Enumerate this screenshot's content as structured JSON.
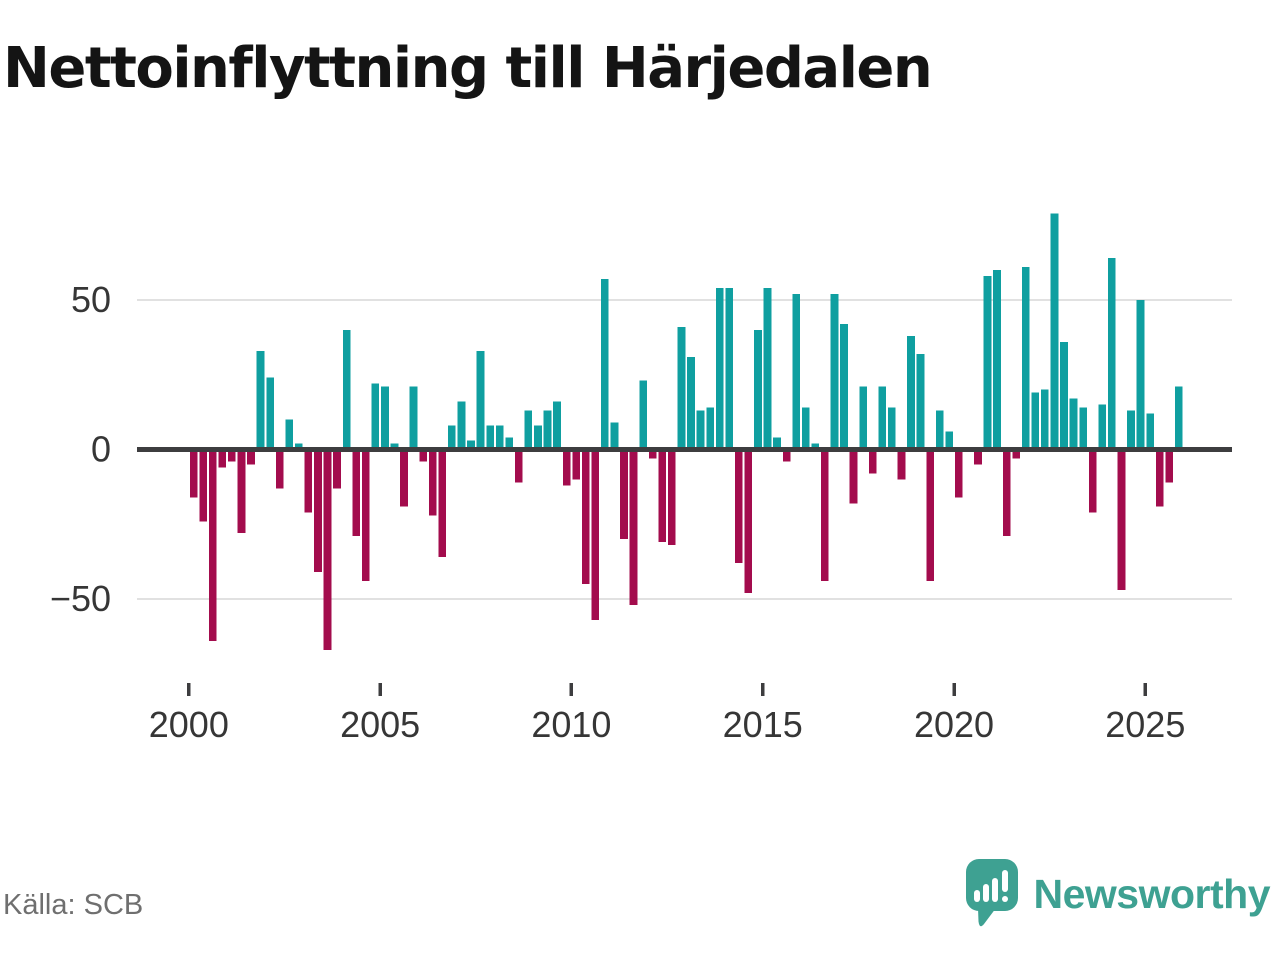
{
  "title": "Nettoinflyttning till Härjedalen",
  "source": "Källa: SCB",
  "logo": {
    "text": "Newsworthy",
    "color": "#3ea192",
    "icon": "speech-bubble-with-bar-chart-and-exclamation"
  },
  "chart_data": {
    "type": "bar",
    "title": "Nettoinflyttning till Härjedalen",
    "frequency": "quarterly",
    "x_start": "2000Q1",
    "x_end": "2025Q4",
    "values": [
      -16,
      -24,
      -64,
      -6,
      -4,
      -28,
      -5,
      33,
      24,
      -13,
      10,
      2,
      -21,
      -41,
      -67,
      -13,
      40,
      -29,
      -44,
      22,
      21,
      2,
      -19,
      21,
      -4,
      -22,
      -36,
      8,
      16,
      3,
      33,
      8,
      8,
      4,
      -11,
      13,
      8,
      13,
      16,
      -12,
      -10,
      -45,
      -57,
      57,
      9,
      -30,
      -52,
      23,
      -3,
      -31,
      -32,
      41,
      31,
      13,
      14,
      54,
      54,
      -38,
      -48,
      40,
      54,
      4,
      -4,
      52,
      14,
      2,
      -44,
      52,
      42,
      -18,
      21,
      -8,
      21,
      14,
      -10,
      38,
      32,
      -44,
      13,
      6,
      -16,
      0,
      -5,
      58,
      60,
      -29,
      -3,
      61,
      19,
      20,
      79,
      36,
      17,
      14,
      -21,
      15,
      64,
      -47,
      13,
      50,
      12,
      -19,
      -11,
      21
    ],
    "y_ticks": [
      {
        "label": "50",
        "value": 50
      },
      {
        "label": "0",
        "value": 0
      },
      {
        "label": "−50",
        "value": -50
      }
    ],
    "x_ticks": [
      {
        "label": "2000",
        "quarter_index": 0
      },
      {
        "label": "2005",
        "quarter_index": 20
      },
      {
        "label": "2010",
        "quarter_index": 40
      },
      {
        "label": "2015",
        "quarter_index": 60
      },
      {
        "label": "2020",
        "quarter_index": 80
      },
      {
        "label": "2025",
        "quarter_index": 100
      }
    ],
    "ylim": [
      -70,
      85
    ],
    "grid": "horizontal",
    "legend": "none",
    "positive_color": "#0f9fa0",
    "negative_color": "#a30c4d",
    "grid_color": "#e1e1e1",
    "zero_line_color": "#3d3d3f",
    "axis_text_color": "#363636"
  }
}
